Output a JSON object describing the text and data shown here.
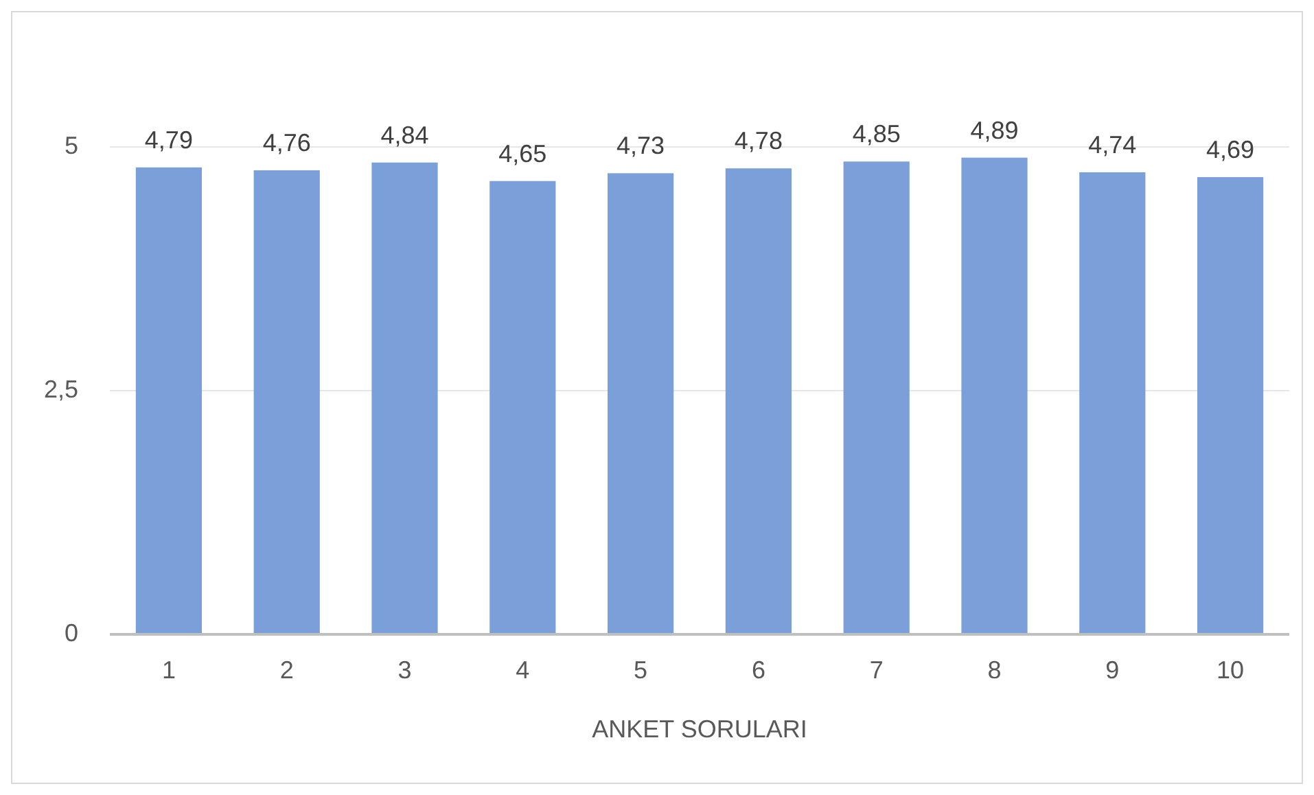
{
  "chart_data": {
    "type": "bar",
    "xlabel": "ANKET SORULARI",
    "categories": [
      "1",
      "2",
      "3",
      "4",
      "5",
      "6",
      "7",
      "8",
      "9",
      "10"
    ],
    "values": [
      4.79,
      4.76,
      4.84,
      4.65,
      4.73,
      4.78,
      4.85,
      4.89,
      4.74,
      4.69
    ],
    "value_labels": [
      "4,79",
      "4,76",
      "4,84",
      "4,65",
      "4,73",
      "4,78",
      "4,85",
      "4,89",
      "4,74",
      "4,69"
    ],
    "color": "#7b9fd8",
    "ylim": [
      0,
      5
    ],
    "yticks": [
      0,
      {
        "value": 2.5,
        "label": "2,5"
      },
      5
    ],
    "grid": "y"
  }
}
